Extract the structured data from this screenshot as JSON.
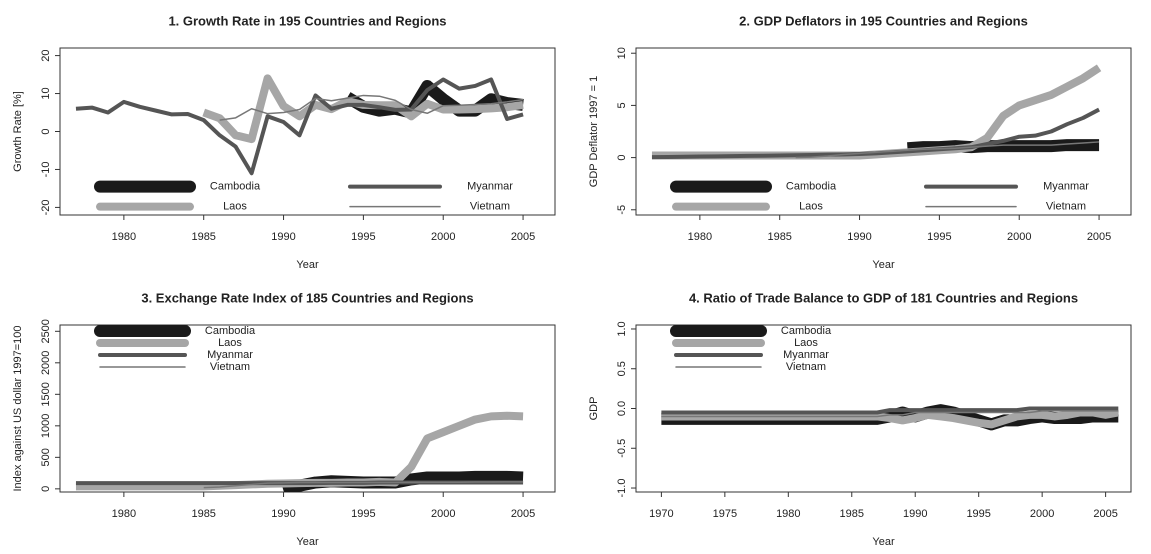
{
  "chart_data": [
    {
      "type": "line",
      "title": "1. Growth Rate in  195 Countries and Regions",
      "x_label": "Year",
      "y_label": "Growth Rate [%]",
      "x": [
        1977,
        1978,
        1979,
        1980,
        1981,
        1982,
        1983,
        1984,
        1985,
        1986,
        1987,
        1988,
        1989,
        1990,
        1991,
        1992,
        1993,
        1994,
        1995,
        1996,
        1997,
        1998,
        1999,
        2000,
        2001,
        2002,
        2003,
        2004,
        2005
      ],
      "xlim": [
        1976,
        2007
      ],
      "xticks": [
        1980,
        1985,
        1990,
        1995,
        2000,
        2005
      ],
      "ylim": [
        -22,
        22
      ],
      "yticks": [
        -20,
        -10,
        0,
        10,
        20
      ],
      "series": [
        {
          "name": "Cambodia",
          "color": "#1a1a1a",
          "values": [
            null,
            null,
            null,
            null,
            null,
            null,
            null,
            null,
            null,
            null,
            null,
            null,
            null,
            null,
            null,
            null,
            null,
            9,
            6.5,
            5.5,
            6,
            5,
            12,
            8.5,
            5.5,
            5.5,
            8.5,
            7.5,
            7
          ]
        },
        {
          "name": "Laos",
          "color": "#a6a6a6",
          "values": [
            null,
            null,
            null,
            null,
            null,
            null,
            null,
            null,
            5,
            3.5,
            -1,
            -2,
            14,
            6.7,
            4,
            7,
            5.9,
            8,
            7,
            6.9,
            6.9,
            4,
            7.3,
            5.8,
            5.8,
            5.9,
            6.1,
            6.4,
            7
          ]
        },
        {
          "name": "Myanmar",
          "color": "#555555",
          "values": [
            6,
            6.3,
            5,
            7.8,
            6.5,
            5.5,
            4.5,
            4.6,
            3,
            -1,
            -4,
            -11,
            4,
            2.5,
            -1,
            9.5,
            6,
            7,
            7,
            6.4,
            5.7,
            5.8,
            10.9,
            13.7,
            11.3,
            12,
            13.7,
            3.3,
            4.5
          ]
        },
        {
          "name": "Vietnam",
          "color": "#777777",
          "values": [
            null,
            null,
            null,
            null,
            null,
            null,
            null,
            null,
            null,
            3,
            3.6,
            6,
            4.7,
            5,
            5.8,
            8.7,
            8.1,
            8.8,
            9.5,
            9.3,
            8.2,
            5.8,
            4.8,
            6.8,
            6.9,
            7.1,
            7.3,
            7.8,
            8.4
          ]
        }
      ]
    },
    {
      "type": "line",
      "title": "2. GDP Deflators in  195 Countries and Regions",
      "x_label": "Year",
      "y_label": "GDP Deflator 1997 = 1",
      "x": [
        1977,
        1978,
        1979,
        1980,
        1981,
        1982,
        1983,
        1984,
        1985,
        1986,
        1987,
        1988,
        1989,
        1990,
        1991,
        1992,
        1993,
        1994,
        1995,
        1996,
        1997,
        1998,
        1999,
        2000,
        2001,
        2002,
        2003,
        2004,
        2005
      ],
      "xlim": [
        1976,
        2007
      ],
      "xticks": [
        1980,
        1985,
        1990,
        1995,
        2000,
        2005
      ],
      "ylim": [
        -5.5,
        10.5
      ],
      "yticks": [
        -5,
        0,
        5,
        10
      ],
      "series": [
        {
          "name": "Cambodia",
          "color": "#1a1a1a",
          "values": [
            null,
            null,
            null,
            null,
            null,
            null,
            null,
            null,
            null,
            null,
            null,
            null,
            null,
            null,
            null,
            null,
            0.9,
            1,
            1,
            1.1,
            1,
            1.1,
            1.1,
            1.1,
            1.1,
            1.1,
            1.2,
            1.2,
            1.2
          ]
        },
        {
          "name": "Laos",
          "color": "#a6a6a6",
          "values": [
            0.2,
            0.2,
            0.2,
            0.2,
            0.2,
            0.2,
            0.2,
            0.2,
            0.2,
            0.2,
            0.2,
            0.2,
            0.2,
            0.2,
            0.3,
            0.4,
            0.5,
            0.6,
            0.7,
            0.8,
            1,
            1.9,
            4,
            5,
            5.5,
            6,
            6.8,
            7.6,
            8.6
          ]
        },
        {
          "name": "Myanmar",
          "color": "#555555",
          "values": [
            0.05,
            0.06,
            0.08,
            0.1,
            0.12,
            0.14,
            0.16,
            0.18,
            0.2,
            0.22,
            0.25,
            0.28,
            0.3,
            0.35,
            0.4,
            0.5,
            0.6,
            0.7,
            0.8,
            0.9,
            1,
            1.3,
            1.6,
            2,
            2.1,
            2.5,
            3.2,
            3.8,
            4.6
          ]
        },
        {
          "name": "Vietnam",
          "color": "#777777",
          "values": [
            null,
            null,
            null,
            null,
            null,
            null,
            null,
            null,
            null,
            0.01,
            0.05,
            0.15,
            0.3,
            0.4,
            0.5,
            0.6,
            0.7,
            0.8,
            0.85,
            0.9,
            1,
            1.1,
            1.2,
            1.2,
            1.2,
            1.2,
            1.3,
            1.4,
            1.5
          ]
        }
      ]
    },
    {
      "type": "line",
      "title": "3. Exchange Rate Index of 185 Countries and Regions",
      "x_label": "Year",
      "y_label": "Index against US dollar 1997=100",
      "x": [
        1977,
        1978,
        1979,
        1980,
        1981,
        1982,
        1983,
        1984,
        1985,
        1986,
        1987,
        1988,
        1989,
        1990,
        1991,
        1992,
        1993,
        1994,
        1995,
        1996,
        1997,
        1998,
        1999,
        2000,
        2001,
        2002,
        2003,
        2004,
        2005
      ],
      "xlim": [
        1976,
        2007
      ],
      "xticks": [
        1980,
        1985,
        1990,
        1995,
        2000,
        2005
      ],
      "ylim": [
        -50,
        2600
      ],
      "yticks": [
        0,
        500,
        1000,
        1500,
        2000,
        2500
      ],
      "series": [
        {
          "name": "Cambodia",
          "color": "#1a1a1a",
          "values": [
            null,
            null,
            null,
            null,
            null,
            null,
            null,
            null,
            null,
            null,
            null,
            null,
            null,
            -30,
            50,
            100,
            120,
            110,
            100,
            100,
            100,
            150,
            180,
            180,
            180,
            190,
            190,
            190,
            180
          ]
        },
        {
          "name": "Laos",
          "color": "#a6a6a6",
          "values": [
            40,
            40,
            40,
            40,
            40,
            40,
            40,
            40,
            40,
            50,
            60,
            70,
            80,
            85,
            90,
            95,
            95,
            100,
            100,
            110,
            100,
            350,
            800,
            900,
            1000,
            1100,
            1150,
            1160,
            1150
          ]
        },
        {
          "name": "Myanmar",
          "color": "#555555",
          "values": [
            90,
            90,
            90,
            90,
            90,
            90,
            90,
            90,
            90,
            90,
            90,
            90,
            90,
            90,
            90,
            90,
            95,
            95,
            95,
            100,
            100,
            100,
            100,
            100,
            100,
            100,
            100,
            100,
            100
          ]
        },
        {
          "name": "Vietnam",
          "color": "#777777",
          "values": [
            null,
            null,
            null,
            null,
            null,
            null,
            null,
            null,
            20,
            30,
            50,
            70,
            90,
            95,
            100,
            100,
            100,
            100,
            100,
            100,
            100,
            105,
            105,
            105,
            105,
            108,
            108,
            110,
            110
          ]
        }
      ]
    },
    {
      "type": "line",
      "title": "4. Ratio of Trade Balance to GDP of 181 Countries and Regions",
      "x_label": "Year",
      "y_label": "GDP",
      "x": [
        1970,
        1971,
        1972,
        1973,
        1974,
        1975,
        1976,
        1977,
        1978,
        1979,
        1980,
        1981,
        1982,
        1983,
        1984,
        1985,
        1986,
        1987,
        1988,
        1989,
        1990,
        1991,
        1992,
        1993,
        1994,
        1995,
        1996,
        1997,
        1998,
        1999,
        2000,
        2001,
        2002,
        2003,
        2004,
        2005,
        2006
      ],
      "xlim": [
        1968,
        2007
      ],
      "xticks": [
        1970,
        1975,
        1980,
        1985,
        1990,
        1995,
        2000,
        2005
      ],
      "ylim": [
        -1.05,
        1.05
      ],
      "yticks": [
        {
          "value": -1,
          "label": "-1.0"
        },
        {
          "value": -0.5,
          "label": "-0.5"
        },
        {
          "value": 0,
          "label": "0.0"
        },
        {
          "value": 0.5,
          "label": "0.5"
        },
        {
          "value": 1,
          "label": "1.0"
        }
      ],
      "series": [
        {
          "name": "Cambodia",
          "color": "#1a1a1a",
          "values": [
            -0.13,
            -0.13,
            -0.13,
            -0.13,
            -0.13,
            -0.13,
            -0.13,
            -0.13,
            -0.13,
            -0.13,
            -0.13,
            -0.13,
            -0.13,
            -0.13,
            -0.13,
            -0.13,
            -0.13,
            -0.13,
            -0.1,
            -0.05,
            -0.1,
            -0.05,
            -0.02,
            -0.05,
            -0.1,
            -0.15,
            -0.2,
            -0.15,
            -0.15,
            -0.12,
            -0.1,
            -0.12,
            -0.12,
            -0.12,
            -0.1,
            -0.1,
            -0.1
          ]
        },
        {
          "name": "Laos",
          "color": "#a6a6a6",
          "values": [
            -0.1,
            -0.1,
            -0.1,
            -0.1,
            -0.1,
            -0.1,
            -0.1,
            -0.1,
            -0.1,
            -0.1,
            -0.1,
            -0.1,
            -0.1,
            -0.1,
            -0.1,
            -0.1,
            -0.1,
            -0.1,
            -0.12,
            -0.15,
            -0.12,
            -0.08,
            -0.1,
            -0.12,
            -0.15,
            -0.18,
            -0.2,
            -0.15,
            -0.1,
            -0.08,
            -0.08,
            -0.1,
            -0.08,
            -0.05,
            -0.05,
            -0.08,
            -0.05
          ]
        },
        {
          "name": "Myanmar",
          "color": "#555555",
          "values": [
            -0.05,
            -0.05,
            -0.05,
            -0.05,
            -0.05,
            -0.05,
            -0.05,
            -0.05,
            -0.05,
            -0.05,
            -0.05,
            -0.05,
            -0.05,
            -0.05,
            -0.05,
            -0.05,
            -0.05,
            -0.05,
            -0.02,
            -0.02,
            -0.02,
            -0.02,
            -0.02,
            -0.02,
            -0.02,
            -0.02,
            -0.02,
            -0.02,
            -0.02,
            0,
            0,
            0,
            0,
            0,
            0,
            0,
            0
          ]
        },
        {
          "name": "Vietnam",
          "color": "#777777",
          "values": [
            -0.1,
            -0.1,
            -0.1,
            -0.1,
            -0.1,
            -0.1,
            -0.1,
            -0.1,
            -0.1,
            -0.1,
            -0.1,
            -0.1,
            -0.1,
            -0.1,
            -0.1,
            -0.1,
            -0.1,
            -0.1,
            -0.08,
            -0.08,
            -0.05,
            -0.05,
            -0.05,
            -0.05,
            -0.05,
            -0.05,
            -0.05,
            -0.05,
            -0.05,
            -0.05,
            -0.03,
            -0.03,
            -0.03,
            -0.03,
            -0.03,
            -0.03,
            -0.03
          ]
        }
      ]
    }
  ]
}
